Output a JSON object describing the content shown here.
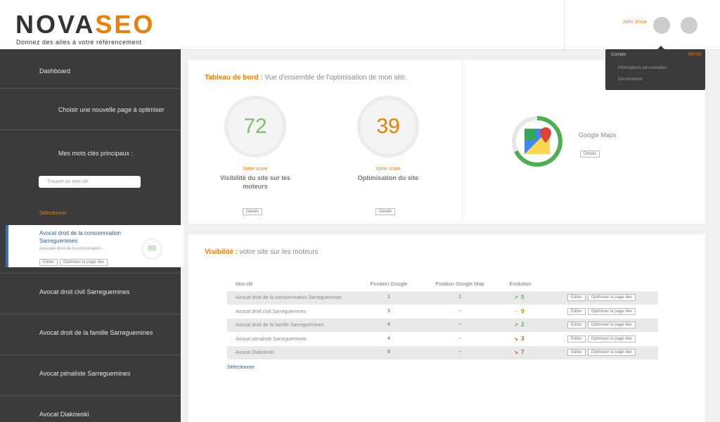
{
  "header": {
    "logo_dark": "NOVA",
    "logo_accent": "SEO",
    "tagline": "Donnez des ailes à votre référencement",
    "user_name": "John Snow"
  },
  "account_menu": {
    "title": "Compte",
    "balance": "500:53",
    "items": [
      "Informations personnelles",
      "Déconnexion"
    ]
  },
  "sidebar": {
    "menu": [
      "Dashboard",
      "Choisir une nouvelle page à optimiser",
      "Mes mots clés principaux :"
    ],
    "search_placeholder": "Trouver un mot clé",
    "select": "Sélectionner",
    "active": {
      "label": "Avocat droit de la consommation Sarreguemines",
      "url": "/avocate-droit-de-la-consomation...",
      "score": "80",
      "edit": "Editer",
      "optimize": "Optimiser la page liée"
    },
    "keywords": [
      "Avocat droit civil Sarreguemines",
      "Avocat droit de la famille Sarreguemines",
      "Avocat pénaliste Sarreguemines",
      "Avocat Diakowski"
    ]
  },
  "dashboard": {
    "title": "Tableau de bord :",
    "subtitle": "Vue d'ensemble de l'optimisation de mon site.",
    "scores": [
      {
        "value": "72",
        "color": "#7cc26a",
        "caption": "Votre score",
        "label": "Visibilité du site sur les moteurs",
        "details": "Détails"
      },
      {
        "value": "39",
        "color": "#ef7d00",
        "caption": "Votre score",
        "label": "Optimisation du site",
        "details": "Détails"
      }
    ],
    "maps": {
      "label": "Google Maps",
      "details": "Détails"
    }
  },
  "visibility": {
    "title": "Visibilité :",
    "subtitle": "votre site sur les moteurs",
    "columns": [
      "Mot-clé",
      "Position Google",
      "Position Google Map",
      "Evolution"
    ],
    "edit": "Editer",
    "optimize": "Optimiser la page liée",
    "select": "Sélectionner",
    "rows": [
      {
        "keyword": "Avocat droit de la consommation Sarreguemines",
        "google": "1",
        "map": "1",
        "trend": "up",
        "evolution": "5"
      },
      {
        "keyword": "Avocat droit civil Sarreguemines",
        "google": "3",
        "map": "–",
        "trend": "flat",
        "evolution": "0"
      },
      {
        "keyword": "Avocat droit de la famille Sarreguemines",
        "google": "4",
        "map": "–",
        "trend": "up",
        "evolution": "2"
      },
      {
        "keyword": "Avocat pénaliste Sarreguemines",
        "google": "4",
        "map": "–",
        "trend": "down",
        "evolution": "3"
      },
      {
        "keyword": "Avocat Diakowski",
        "google": "8",
        "map": "–",
        "trend": "down",
        "evolution": "7"
      }
    ]
  }
}
